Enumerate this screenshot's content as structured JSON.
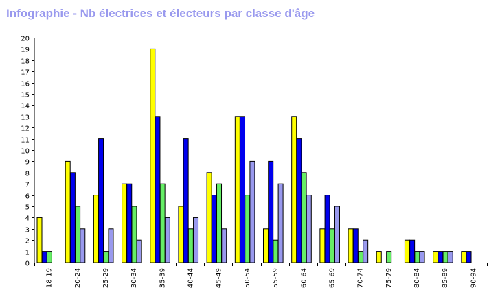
{
  "title": "Infographie - Nb électrices et électeurs par classe d'âge",
  "colors": {
    "title": "#9999ee",
    "series": [
      "#ffff00",
      "#0000ee",
      "#66ee66",
      "#9999ee"
    ]
  },
  "chart_data": {
    "type": "bar",
    "title": "Infographie - Nb électrices et électeurs par classe d'âge",
    "xlabel": "",
    "ylabel": "",
    "ylim": [
      0,
      20
    ],
    "yticks": [
      0,
      1,
      2,
      3,
      4,
      5,
      6,
      7,
      8,
      9,
      10,
      11,
      12,
      13,
      14,
      15,
      16,
      17,
      18,
      19,
      20
    ],
    "grid": false,
    "legend": "none",
    "categories": [
      "18-19",
      "20-24",
      "25-29",
      "30-34",
      "35-39",
      "40-44",
      "45-49",
      "50-54",
      "55-59",
      "60-64",
      "65-69",
      "70-74",
      "75-79",
      "80-84",
      "85-89",
      "90-94"
    ],
    "series": [
      {
        "values": [
          4,
          9,
          6,
          7,
          19,
          5,
          8,
          13,
          3,
          13,
          3,
          3,
          1,
          2,
          1,
          1
        ]
      },
      {
        "values": [
          1,
          8,
          11,
          7,
          13,
          11,
          6,
          13,
          9,
          11,
          6,
          3,
          0,
          2,
          1,
          1
        ]
      },
      {
        "values": [
          1,
          5,
          1,
          5,
          7,
          3,
          7,
          6,
          2,
          8,
          3,
          1,
          1,
          1,
          1,
          0
        ]
      },
      {
        "values": [
          0,
          3,
          3,
          2,
          4,
          4,
          3,
          9,
          7,
          6,
          5,
          2,
          0,
          1,
          1,
          0
        ]
      }
    ]
  }
}
